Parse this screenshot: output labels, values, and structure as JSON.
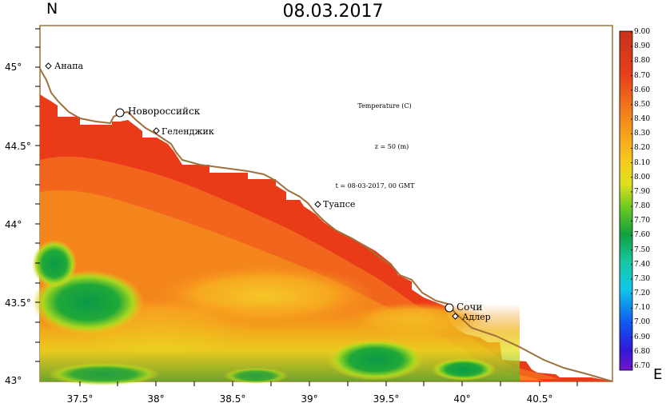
{
  "title": "08.03.2017",
  "axis_north": "N",
  "axis_east": "E",
  "lat_ticks": [
    "45°",
    "44.5°",
    "44°",
    "43.5°",
    "43°"
  ],
  "lon_ticks": [
    "37.5°",
    "38°",
    "38.5°",
    "39°",
    "39.5°",
    "40°",
    "40.5°"
  ],
  "annotations": {
    "variable": "Temperature (C)",
    "depth": "z = 50 (m)",
    "time": "t = 08-03-2017, 00 GMT"
  },
  "cities": [
    {
      "name": "Анапа",
      "lon": 37.32,
      "lat": 45.0,
      "marker": "small"
    },
    {
      "name": "Новороссийск",
      "lon": 37.77,
      "lat": 44.71,
      "marker": "large"
    },
    {
      "name": "Геленджик",
      "lon": 38.0,
      "lat": 44.59,
      "marker": "small"
    },
    {
      "name": "Туапсе",
      "lon": 39.07,
      "lat": 44.12,
      "marker": "small"
    },
    {
      "name": "Сочи",
      "lon": 39.92,
      "lat": 43.47,
      "marker": "large"
    },
    {
      "name": "Адлер",
      "lon": 39.95,
      "lat": 43.41,
      "marker": "small"
    }
  ],
  "colorbar": {
    "min": 6.7,
    "max": 9.0,
    "labels": [
      "9.00",
      "8.90",
      "8.80",
      "8.70",
      "8.60",
      "8.50",
      "8.40",
      "8.30",
      "8.20",
      "8.10",
      "8.00",
      "7.90",
      "7.80",
      "7.70",
      "7.60",
      "7.50",
      "7.40",
      "7.30",
      "7.20",
      "7.10",
      "7.00",
      "6.90",
      "6.80",
      "6.70"
    ]
  },
  "colors": {
    "coast": "#a0703c",
    "warm_max": "#d32a14",
    "cold_min": "#6a1ec8"
  }
}
